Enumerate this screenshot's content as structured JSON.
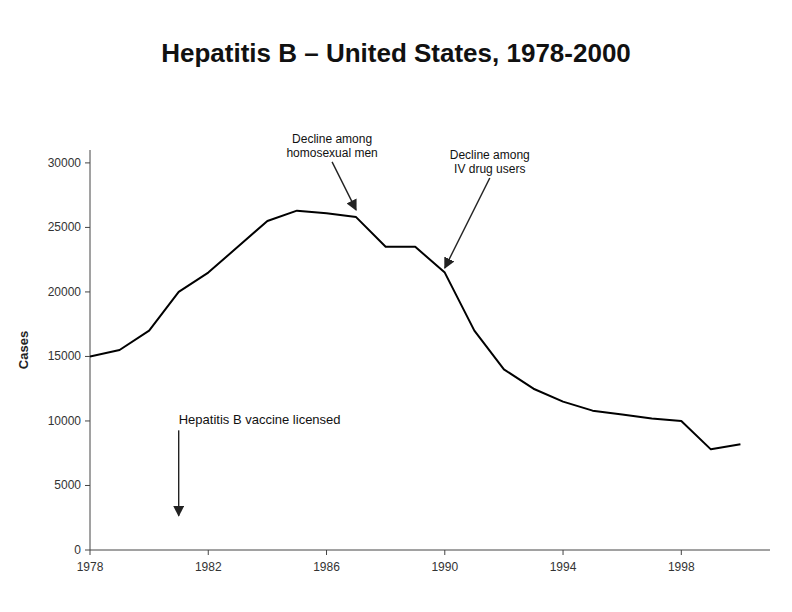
{
  "chart_data": {
    "type": "line",
    "title": "Hepatitis B – United States, 1978-2000",
    "y_label": "Cases",
    "x": [
      1978,
      1979,
      1980,
      1981,
      1982,
      1983,
      1984,
      1985,
      1986,
      1987,
      1988,
      1989,
      1990,
      1991,
      1992,
      1993,
      1994,
      1995,
      1996,
      1997,
      1998,
      1999,
      2000
    ],
    "values": [
      15000,
      15500,
      17000,
      20000,
      21500,
      23500,
      25500,
      26300,
      26100,
      25800,
      23500,
      23500,
      21500,
      17000,
      14000,
      12500,
      11500,
      10800,
      10500,
      10200,
      10000,
      7800,
      8200
    ],
    "color": "#000000",
    "xlim": [
      1978,
      2001
    ],
    "xticks": [
      1978,
      1982,
      1986,
      1990,
      1994,
      1998
    ],
    "ylim": [
      0,
      31000
    ],
    "yticks": [
      0,
      5000,
      10000,
      15000,
      20000,
      25000,
      30000
    ],
    "grid": false,
    "annotations": [
      {
        "text": "Decline among\nhomosexual men",
        "x": 1987.0,
        "y": 26200
      },
      {
        "text": "Decline among\nIV drug users",
        "x": 1990.0,
        "y": 21700
      },
      {
        "text": "Hepatitis B vaccine licensed",
        "x": 1981.0,
        "y": 2500
      }
    ]
  }
}
